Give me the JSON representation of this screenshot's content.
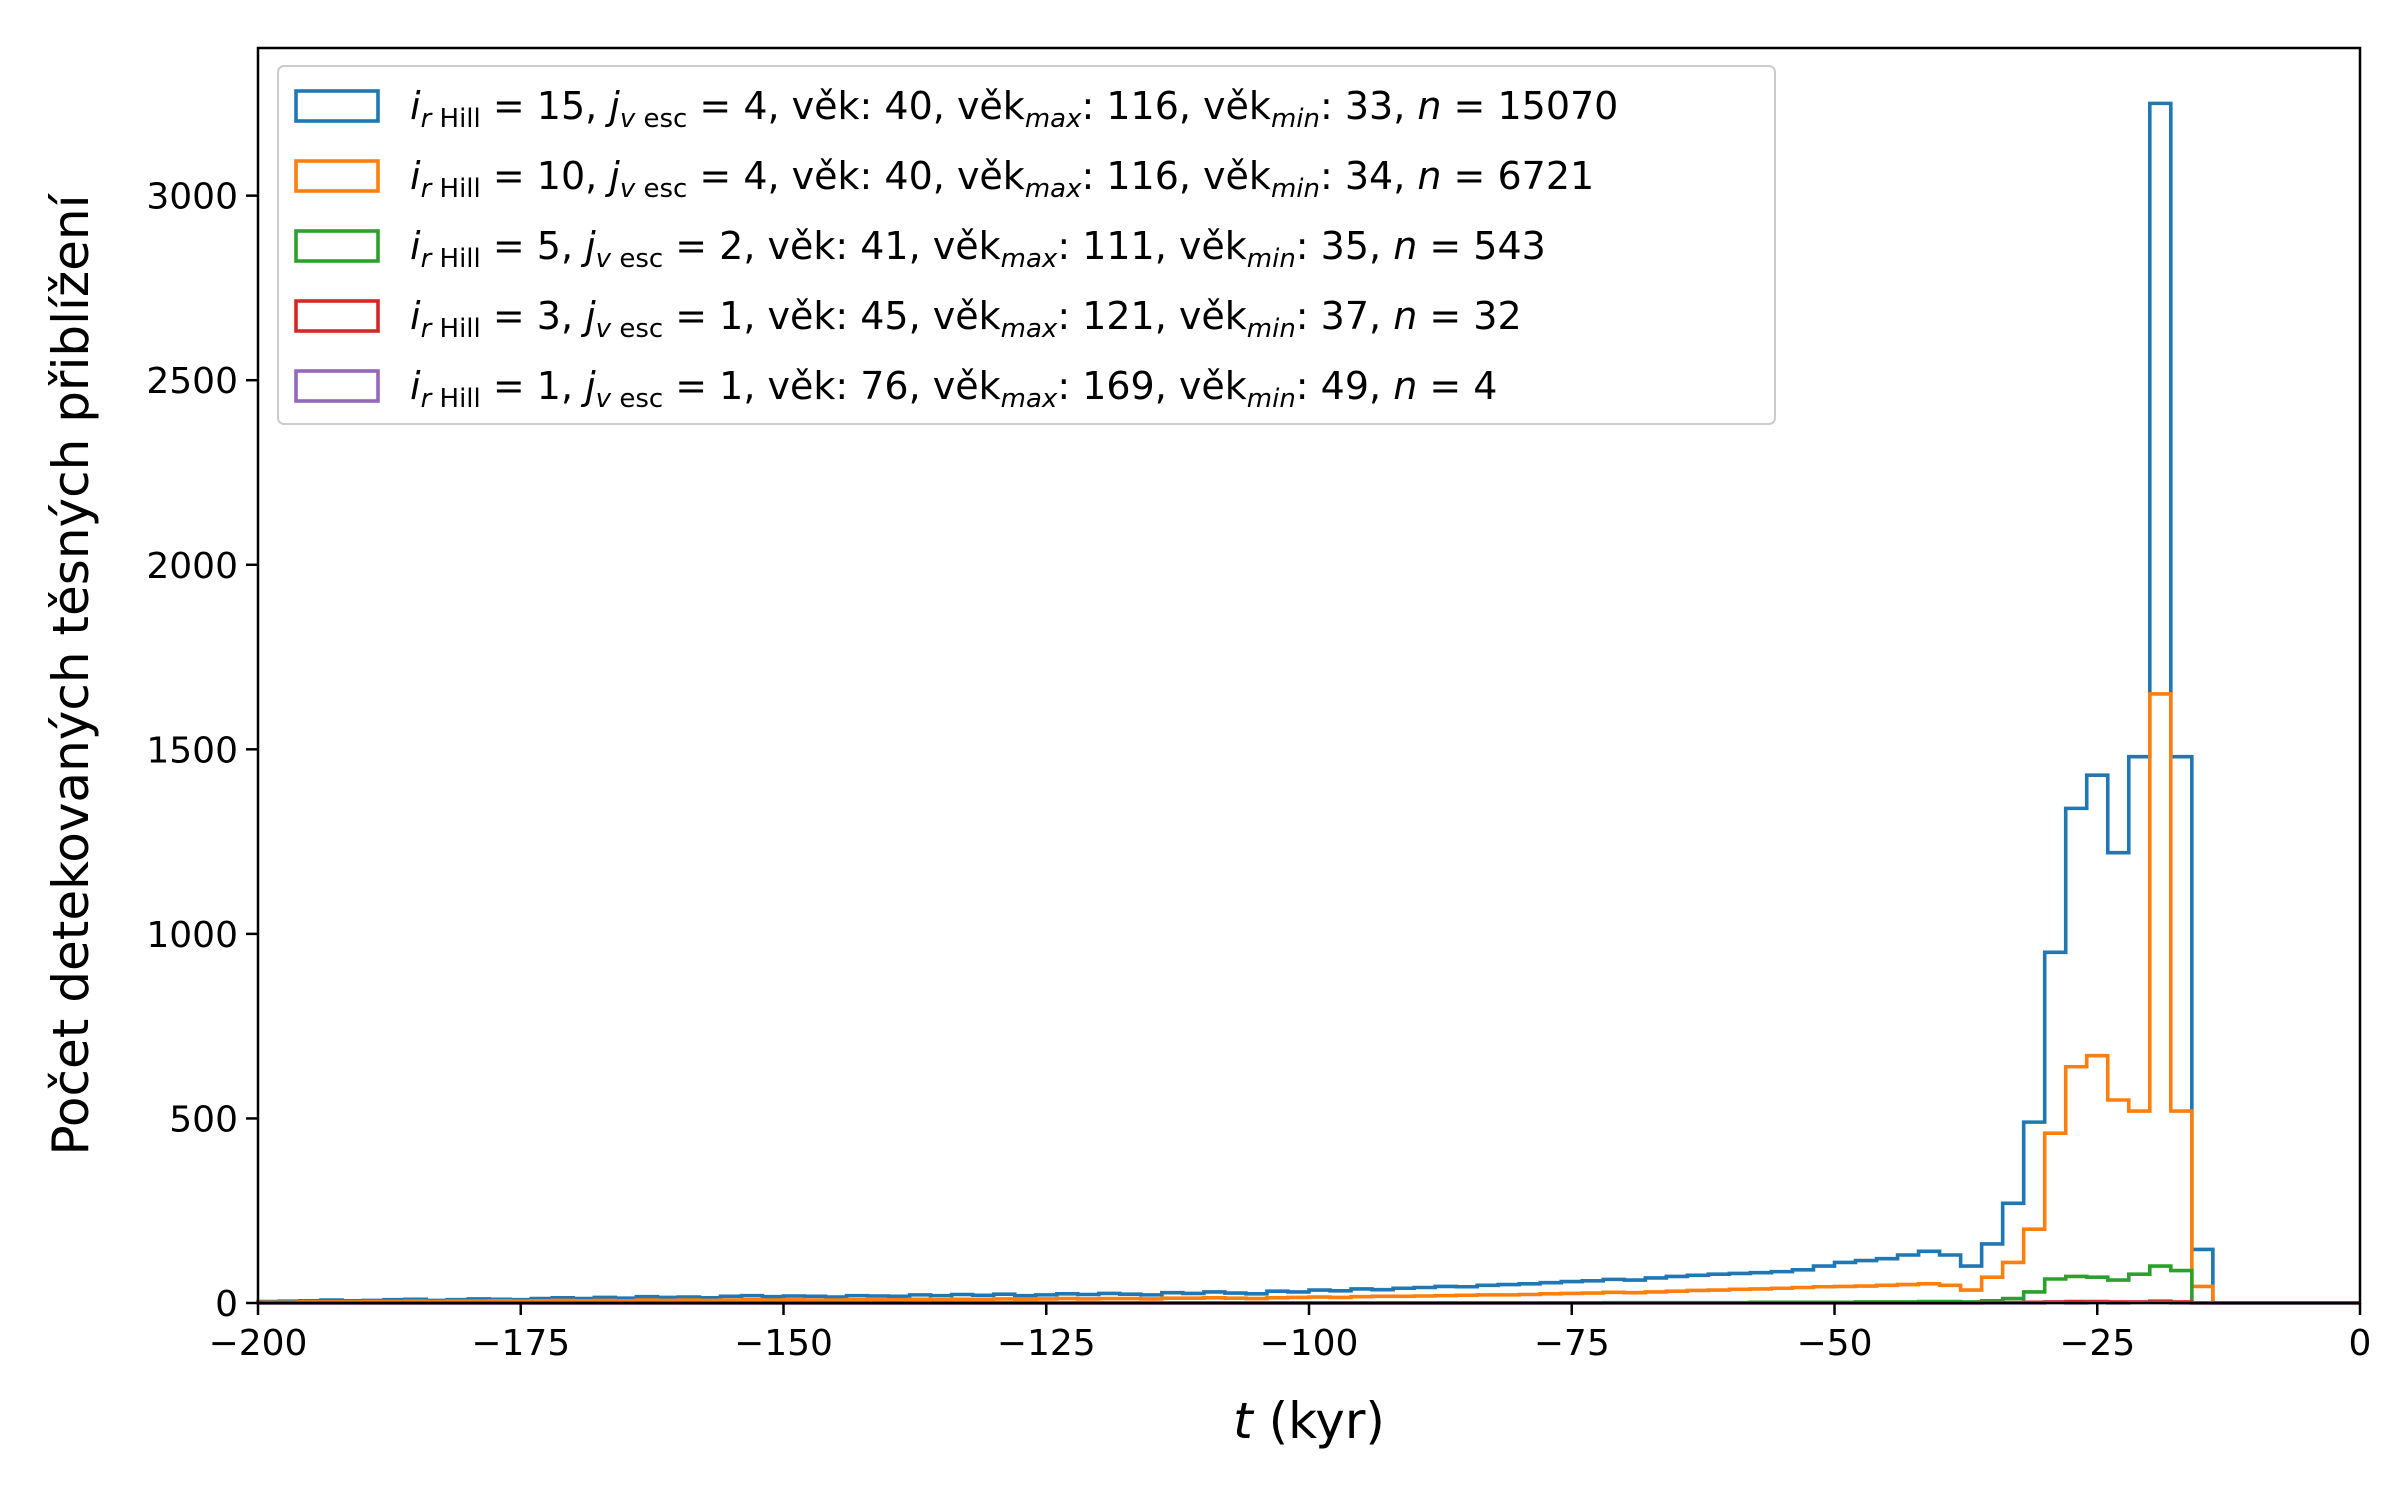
{
  "chart_data": {
    "type": "histogram",
    "ylabel": "Počet detekovaných těsných přiblížení",
    "xlabel_var": "t",
    "xlabel_unit": " (kyr)",
    "xlim": [
      -200,
      0
    ],
    "ylim": [
      0,
      3400
    ],
    "xticks": [
      -200,
      -175,
      -150,
      -125,
      -100,
      -75,
      -50,
      -25,
      0
    ],
    "xtick_labels": [
      "−200",
      "−175",
      "−150",
      "−125",
      "−100",
      "−75",
      "−50",
      "−25",
      "0"
    ],
    "yticks": [
      0,
      500,
      1000,
      1500,
      2000,
      2500,
      3000
    ],
    "ytick_labels": [
      "0",
      "500",
      "1000",
      "1500",
      "2000",
      "2500",
      "3000"
    ],
    "legend_position": "upper-left",
    "bin_start": -200,
    "bin_width": 2,
    "series": [
      {
        "legend": {
          "i_val": "15",
          "j_val": "4",
          "vek": "40",
          "vek_max": "116",
          "vek_min": "33",
          "n": "15070"
        },
        "values": [
          4,
          5,
          6,
          8,
          6,
          7,
          9,
          10,
          7,
          9,
          11,
          10,
          9,
          12,
          14,
          12,
          15,
          13,
          17,
          15,
          16,
          14,
          18,
          20,
          17,
          19,
          18,
          16,
          20,
          19,
          18,
          22,
          20,
          23,
          21,
          24,
          20,
          22,
          25,
          23,
          26,
          24,
          22,
          28,
          26,
          30,
          27,
          25,
          32,
          30,
          35,
          33,
          38,
          36,
          40,
          42,
          45,
          44,
          48,
          50,
          52,
          55,
          58,
          60,
          64,
          62,
          68,
          72,
          75,
          78,
          80,
          82,
          85,
          90,
          100,
          110,
          115,
          120,
          130,
          140,
          130,
          100,
          160,
          270,
          490,
          950,
          1340,
          1430,
          1220,
          1480,
          3250,
          1480,
          145,
          0,
          0,
          0,
          0,
          0,
          0,
          0
        ]
      },
      {
        "legend": {
          "i_val": "10",
          "j_val": "4",
          "vek": "40",
          "vek_max": "116",
          "vek_min": "34",
          "n": "6721"
        },
        "values": [
          2,
          2,
          3,
          3,
          3,
          4,
          4,
          5,
          4,
          5,
          5,
          6,
          5,
          6,
          7,
          6,
          7,
          6,
          8,
          7,
          8,
          7,
          8,
          9,
          8,
          9,
          8,
          8,
          9,
          9,
          9,
          10,
          9,
          10,
          10,
          11,
          10,
          11,
          12,
          11,
          12,
          12,
          11,
          13,
          13,
          14,
          13,
          12,
          14,
          15,
          16,
          15,
          17,
          18,
          18,
          19,
          20,
          21,
          22,
          22,
          23,
          25,
          26,
          27,
          29,
          28,
          30,
          32,
          34,
          35,
          37,
          38,
          40,
          42,
          44,
          45,
          46,
          48,
          50,
          52,
          48,
          35,
          70,
          110,
          200,
          460,
          640,
          670,
          550,
          520,
          1650,
          520,
          45,
          0,
          0,
          0,
          0,
          0,
          0,
          0
        ]
      },
      {
        "legend": {
          "i_val": " 5",
          "j_val": "2",
          "vek": "41",
          "vek_max": "111",
          "vek_min": "35",
          "n": "543"
        },
        "values": [
          0,
          0,
          0,
          0,
          0,
          0,
          0,
          0,
          0,
          0,
          0,
          0,
          0,
          0,
          0,
          0,
          0,
          0,
          0,
          0,
          0,
          0,
          0,
          0,
          0,
          0,
          0,
          0,
          0,
          0,
          0,
          0,
          0,
          0,
          0,
          0,
          0,
          0,
          0,
          0,
          0,
          0,
          0,
          0,
          0,
          0,
          0,
          0,
          0,
          0,
          0,
          0,
          0,
          0,
          0,
          0,
          0,
          0,
          0,
          0,
          0,
          0,
          0,
          0,
          1,
          1,
          1,
          1,
          1,
          1,
          1,
          2,
          2,
          2,
          2,
          2,
          3,
          3,
          3,
          4,
          4,
          3,
          6,
          12,
          30,
          65,
          72,
          70,
          62,
          78,
          100,
          88,
          0,
          0,
          0,
          0,
          0,
          0,
          0,
          0
        ]
      },
      {
        "legend": {
          "i_val": " 3",
          "j_val": "1",
          "vek": "45",
          "vek_max": "121",
          "vek_min": "37",
          "n": "32"
        },
        "values": [
          0,
          0,
          0,
          0,
          0,
          0,
          0,
          0,
          0,
          0,
          0,
          0,
          0,
          0,
          0,
          0,
          0,
          0,
          0,
          0,
          0,
          0,
          0,
          0,
          0,
          0,
          0,
          0,
          0,
          0,
          0,
          0,
          0,
          0,
          0,
          0,
          0,
          0,
          0,
          0,
          0,
          0,
          0,
          0,
          0,
          0,
          0,
          0,
          0,
          0,
          0,
          0,
          0,
          0,
          0,
          0,
          0,
          0,
          0,
          0,
          0,
          0,
          0,
          0,
          0,
          0,
          0,
          0,
          0,
          0,
          0,
          0,
          0,
          0,
          0,
          0,
          0,
          0,
          0,
          0,
          0,
          0,
          1,
          1,
          2,
          3,
          4,
          4,
          3,
          3,
          5,
          3,
          0,
          0,
          0,
          0,
          0,
          0,
          0,
          0
        ]
      },
      {
        "legend": {
          "i_val": " 1",
          "j_val": "1",
          "vek": "76",
          "vek_max": "169",
          "vek_min": "49",
          "n": "4"
        },
        "values": [
          0,
          0,
          0,
          0,
          0,
          0,
          0,
          0,
          0,
          0,
          0,
          0,
          0,
          0,
          0,
          0,
          0,
          0,
          0,
          0,
          0,
          0,
          0,
          0,
          0,
          0,
          0,
          0,
          0,
          0,
          0,
          0,
          0,
          0,
          0,
          0,
          0,
          0,
          0,
          0,
          0,
          0,
          0,
          0,
          0,
          0,
          0,
          0,
          0,
          0,
          0,
          0,
          0,
          0,
          0,
          0,
          0,
          0,
          0,
          0,
          0,
          0,
          0,
          0,
          0,
          0,
          0,
          0,
          0,
          0,
          0,
          0,
          0,
          0,
          0,
          0,
          0,
          0,
          0,
          0,
          0,
          0,
          0,
          0,
          0,
          1,
          0,
          1,
          0,
          1,
          1,
          0,
          0,
          0,
          0,
          0,
          0,
          0,
          0,
          0
        ]
      }
    ],
    "legend_parts": {
      "i_sub": "r",
      "i_sub2": " Hill",
      "j_sub": "v",
      "j_sub2": " esc",
      "vek_word": "věk",
      "max_sub": "max",
      "min_sub": "min",
      "n_var": "n"
    },
    "grid": false
  },
  "colors": {
    "series": [
      "#1f77b4",
      "#ff7f0e",
      "#2ca02c",
      "#d62728",
      "#9467bd"
    ],
    "axes": "#000000",
    "legend_frame": "#cccccc",
    "background": "#ffffff"
  }
}
